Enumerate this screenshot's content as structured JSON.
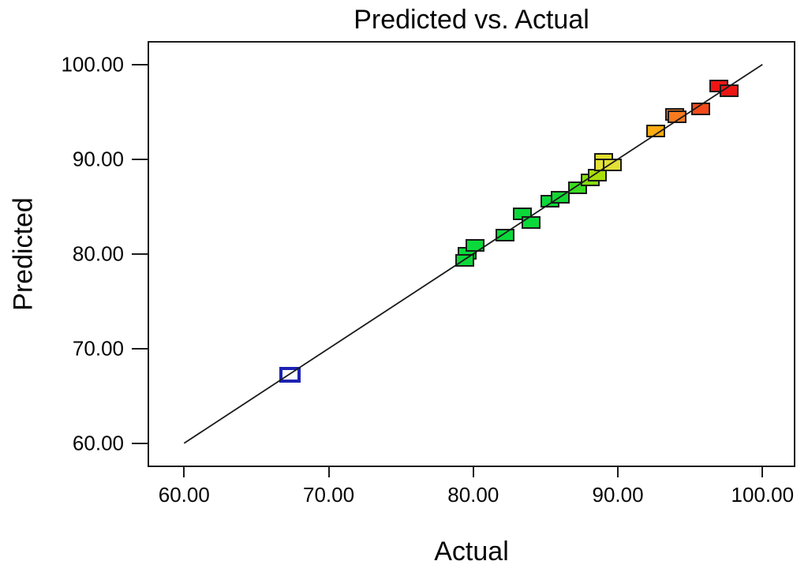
{
  "chart_data": {
    "type": "scatter",
    "title": "Predicted vs. Actual",
    "xlabel": "Actual",
    "ylabel": "Predicted",
    "xlim": [
      60,
      100
    ],
    "ylim": [
      60,
      100
    ],
    "x_tick_labels": [
      "60.00",
      "70.00",
      "80.00",
      "90.00",
      "100.00"
    ],
    "x_tick_values": [
      60,
      70,
      80,
      90,
      100
    ],
    "y_tick_labels": [
      "100.00",
      "90.00",
      "80.00",
      "70.00",
      "60.00"
    ],
    "y_tick_values": [
      100,
      90,
      80,
      70,
      60
    ],
    "grid": false,
    "legend": null,
    "frame_color": "#1c1c1c",
    "marker_border_color": "#1a1a1a",
    "identity_line": {
      "x": [
        60,
        100
      ],
      "y": [
        60,
        100
      ],
      "color": "#1a1a1a"
    },
    "points": [
      {
        "actual": 67.3,
        "predicted": 67.2,
        "color": "#ffffff",
        "border": "#1d23b2",
        "open": true
      },
      {
        "actual": 79.6,
        "predicted": 80.1,
        "color": "#0bd93a"
      },
      {
        "actual": 80.1,
        "predicted": 80.9,
        "color": "#0bd93a"
      },
      {
        "actual": 79.4,
        "predicted": 79.3,
        "color": "#0bd93a"
      },
      {
        "actual": 82.2,
        "predicted": 82.0,
        "color": "#0bd93a"
      },
      {
        "actual": 83.4,
        "predicted": 84.2,
        "color": "#0bd93a"
      },
      {
        "actual": 84.0,
        "predicted": 83.3,
        "color": "#0bd93a"
      },
      {
        "actual": 85.3,
        "predicted": 85.6,
        "color": "#0bd93a"
      },
      {
        "actual": 86.0,
        "predicted": 86.0,
        "color": "#12d733"
      },
      {
        "actual": 87.2,
        "predicted": 87.0,
        "color": "#3cdb22"
      },
      {
        "actual": 88.1,
        "predicted": 87.8,
        "color": "#84dd10"
      },
      {
        "actual": 88.6,
        "predicted": 88.3,
        "color": "#a8de0a"
      },
      {
        "actual": 89.0,
        "predicted": 90.0,
        "color": "#e0e030"
      },
      {
        "actual": 89.0,
        "predicted": 89.4,
        "color": "#e2e134"
      },
      {
        "actual": 89.6,
        "predicted": 89.4,
        "color": "#e2e134"
      },
      {
        "actual": 92.6,
        "predicted": 93.0,
        "color": "#ffab12"
      },
      {
        "actual": 93.9,
        "predicted": 94.7,
        "color": "#fa7a1e"
      },
      {
        "actual": 94.1,
        "predicted": 94.5,
        "color": "#fa7a1e"
      },
      {
        "actual": 95.7,
        "predicted": 95.3,
        "color": "#f64a1a"
      },
      {
        "actual": 97.0,
        "predicted": 97.7,
        "color": "#ee1515"
      },
      {
        "actual": 97.7,
        "predicted": 97.2,
        "color": "#ee1515"
      }
    ]
  }
}
